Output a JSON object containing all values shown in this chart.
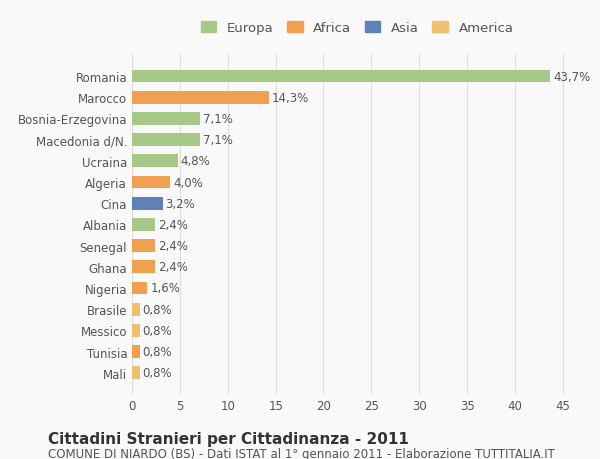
{
  "categories": [
    "Mali",
    "Tunisia",
    "Messico",
    "Brasile",
    "Nigeria",
    "Ghana",
    "Senegal",
    "Albania",
    "Cina",
    "Algeria",
    "Ucraina",
    "Macedonia d/N.",
    "Bosnia-Erzegovina",
    "Marocco",
    "Romania"
  ],
  "values": [
    0.8,
    0.8,
    0.8,
    0.8,
    1.6,
    2.4,
    2.4,
    2.4,
    3.2,
    4.0,
    4.8,
    7.1,
    7.1,
    14.3,
    43.7
  ],
  "labels": [
    "0,8%",
    "0,8%",
    "0,8%",
    "0,8%",
    "1,6%",
    "2,4%",
    "2,4%",
    "2,4%",
    "3,2%",
    "4,0%",
    "4,8%",
    "7,1%",
    "7,1%",
    "14,3%",
    "43,7%"
  ],
  "colors": [
    "#f0c070",
    "#f0a050",
    "#f0c070",
    "#f0c070",
    "#f0a050",
    "#f0a050",
    "#f0a050",
    "#a8c888",
    "#6080b8",
    "#f0a050",
    "#a8c888",
    "#a8c888",
    "#a8c888",
    "#f0a050",
    "#a8c888"
  ],
  "legend_labels": [
    "Europa",
    "Africa",
    "Asia",
    "America"
  ],
  "legend_colors": [
    "#a8c888",
    "#f0a050",
    "#6080b8",
    "#f0c070"
  ],
  "title": "Cittadini Stranieri per Cittadinanza - 2011",
  "subtitle": "COMUNE DI NIARDO (BS) - Dati ISTAT al 1° gennaio 2011 - Elaborazione TUTTITALIA.IT",
  "xlabel": "",
  "xlim": [
    0,
    47
  ],
  "xticks": [
    0,
    5,
    10,
    15,
    20,
    25,
    30,
    35,
    40,
    45
  ],
  "background_color": "#f9f9f9",
  "grid_color": "#dddddd",
  "bar_height": 0.6,
  "title_fontsize": 11,
  "subtitle_fontsize": 8.5,
  "tick_fontsize": 8.5,
  "label_fontsize": 8.5
}
